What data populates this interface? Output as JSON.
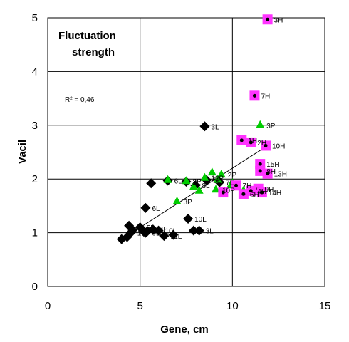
{
  "chart_data": {
    "type": "scatter",
    "title": "Fluctuation strength",
    "xlabel": "Gene, cm",
    "ylabel": "Vacil",
    "xlim": [
      0,
      15
    ],
    "ylim": [
      0,
      5
    ],
    "xticks": [
      "0",
      "5",
      "10",
      "15"
    ],
    "yticks": [
      "0",
      "1",
      "2",
      "3",
      "4",
      "5"
    ],
    "grid": true,
    "annotation": "R² = 0,46",
    "colors": {
      "L": "#000000",
      "P": "#00cc00",
      "H_fill": "#ff33ff",
      "H_dot": "#000000",
      "trend": "#000000"
    },
    "trendline": {
      "x": [
        4.2,
        11.9
      ],
      "y": [
        0.92,
        2.62
      ]
    },
    "series": [
      {
        "marker": "diamond",
        "points": [
          {
            "x": 4.0,
            "y": 0.88,
            "label": ""
          },
          {
            "x": 4.3,
            "y": 0.92,
            "label": ""
          },
          {
            "x": 4.4,
            "y": 1.13,
            "label": ""
          },
          {
            "x": 4.5,
            "y": 1.0,
            "label": "1L"
          },
          {
            "x": 4.6,
            "y": 1.05,
            "label": ""
          },
          {
            "x": 5.0,
            "y": 1.1,
            "label": "5L"
          },
          {
            "x": 5.2,
            "y": 1.02,
            "label": ""
          },
          {
            "x": 5.3,
            "y": 1.0,
            "label": "9L"
          },
          {
            "x": 5.4,
            "y": 1.03,
            "label": ""
          },
          {
            "x": 5.7,
            "y": 1.06,
            "label": "4L"
          },
          {
            "x": 6.0,
            "y": 1.04,
            "label": "10L"
          },
          {
            "x": 6.3,
            "y": 0.94,
            "label": "11L"
          },
          {
            "x": 6.8,
            "y": 0.96,
            "label": ""
          },
          {
            "x": 7.9,
            "y": 1.04,
            "label": ""
          },
          {
            "x": 8.2,
            "y": 1.04,
            "label": "3L"
          },
          {
            "x": 5.3,
            "y": 1.46,
            "label": "6L"
          },
          {
            "x": 7.6,
            "y": 1.26,
            "label": "10L"
          },
          {
            "x": 5.6,
            "y": 1.92,
            "label": ""
          },
          {
            "x": 6.5,
            "y": 1.97,
            "label": "6L"
          },
          {
            "x": 7.5,
            "y": 1.95,
            "label": "2L"
          },
          {
            "x": 8.0,
            "y": 1.88,
            "label": "8L"
          },
          {
            "x": 8.6,
            "y": 1.98,
            "label": "5L"
          },
          {
            "x": 9.3,
            "y": 1.94,
            "label": "7L"
          },
          {
            "x": 8.5,
            "y": 2.98,
            "label": "3L"
          }
        ]
      },
      {
        "marker": "triangle",
        "points": [
          {
            "x": 6.5,
            "y": 1.98,
            "label": ""
          },
          {
            "x": 7.0,
            "y": 1.58,
            "label": "3P"
          },
          {
            "x": 7.5,
            "y": 1.96,
            "label": "3P"
          },
          {
            "x": 7.9,
            "y": 1.85,
            "label": ""
          },
          {
            "x": 8.2,
            "y": 1.78,
            "label": ""
          },
          {
            "x": 8.5,
            "y": 2.02,
            "label": "12P"
          },
          {
            "x": 8.9,
            "y": 2.12,
            "label": ""
          },
          {
            "x": 9.2,
            "y": 1.98,
            "label": ""
          },
          {
            "x": 9.1,
            "y": 1.8,
            "label": "10P"
          },
          {
            "x": 9.4,
            "y": 2.08,
            "label": "2P"
          },
          {
            "x": 9.9,
            "y": 1.88,
            "label": ""
          },
          {
            "x": 10.0,
            "y": 1.92,
            "label": ""
          },
          {
            "x": 10.6,
            "y": 1.78,
            "label": ""
          },
          {
            "x": 10.9,
            "y": 1.82,
            "label": ""
          },
          {
            "x": 11.5,
            "y": 3.0,
            "label": "3P"
          }
        ]
      },
      {
        "marker": "square",
        "points": [
          {
            "x": 11.9,
            "y": 4.97,
            "label": "3H"
          },
          {
            "x": 11.2,
            "y": 3.55,
            "label": "7H"
          },
          {
            "x": 10.5,
            "y": 2.72,
            "label": "1H"
          },
          {
            "x": 11.0,
            "y": 2.68,
            "label": "2H"
          },
          {
            "x": 11.8,
            "y": 2.62,
            "label": "10H"
          },
          {
            "x": 11.5,
            "y": 2.28,
            "label": "15H"
          },
          {
            "x": 11.5,
            "y": 2.15,
            "label": "8H"
          },
          {
            "x": 11.9,
            "y": 2.1,
            "label": "13H"
          },
          {
            "x": 9.5,
            "y": 1.75,
            "label": ""
          },
          {
            "x": 10.2,
            "y": 1.88,
            "label": "7H"
          },
          {
            "x": 10.6,
            "y": 1.72,
            "label": "6H"
          },
          {
            "x": 11.0,
            "y": 1.78,
            "label": "4H"
          },
          {
            "x": 11.4,
            "y": 1.82,
            "label": "9H"
          },
          {
            "x": 11.6,
            "y": 1.75,
            "label": "14H"
          }
        ]
      }
    ]
  }
}
